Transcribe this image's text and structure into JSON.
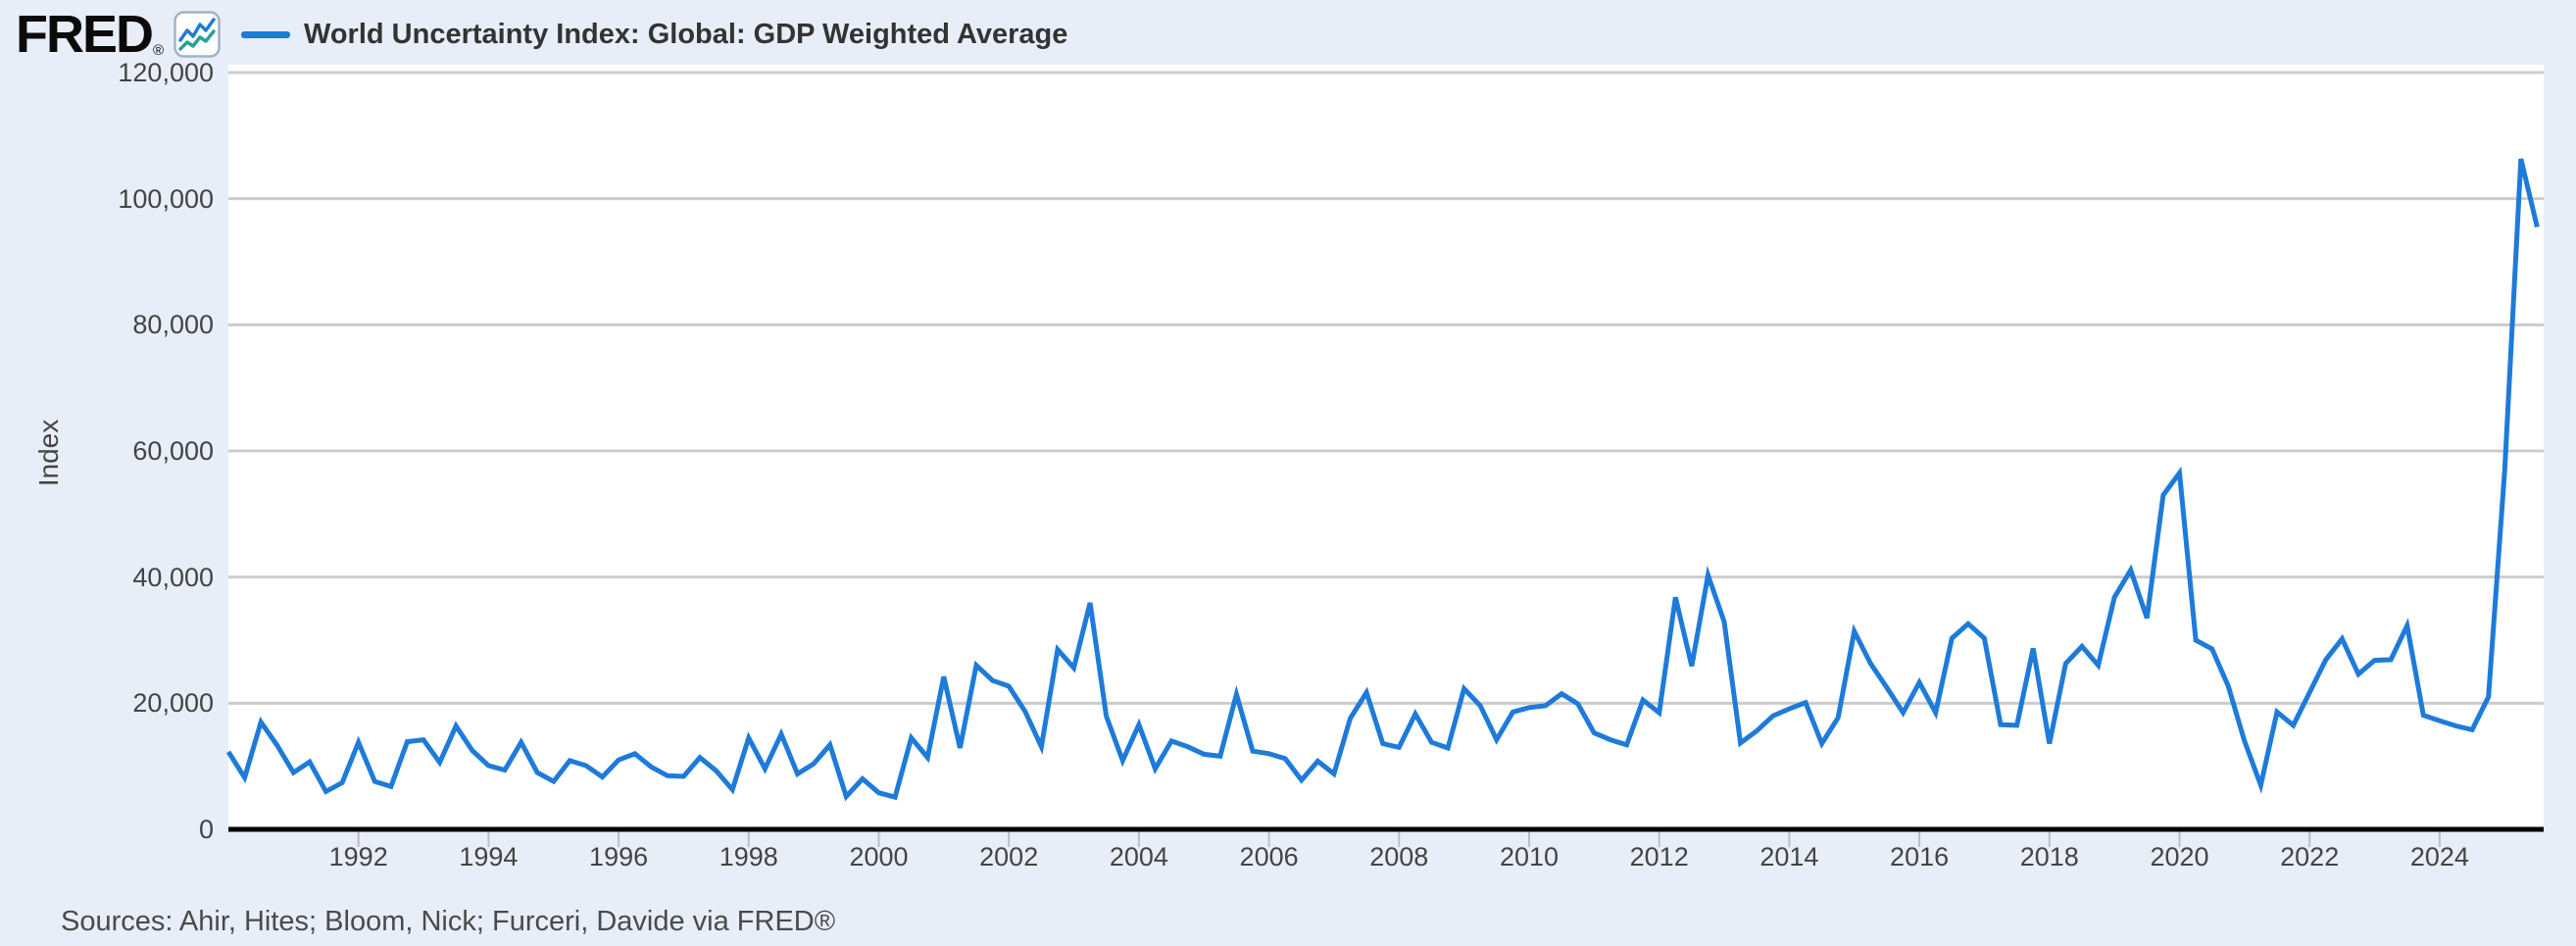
{
  "header": {
    "logo": {
      "text": "FRED",
      "registered": "®"
    },
    "legend": {
      "label": "World Uncertainty Index: Global: GDP Weighted Average",
      "line_color": "#1e7bd9"
    }
  },
  "footer": {
    "sources": "Sources: Ahir, Hites; Bloom, Nick; Furceri, Davide via FRED®"
  },
  "colors": {
    "background": "#e8eef8",
    "plot_background": "#ffffff",
    "gridline": "#cccccc",
    "axis_line": "#000000",
    "tick_mark": "#b9bec7",
    "tick_label": "#444444",
    "series_line": "#1e7bd9",
    "logo_icon_line_blue": "#1e7bd9",
    "logo_icon_line_teal": "#2aa198"
  },
  "chart_data": {
    "type": "line",
    "title": "World Uncertainty Index: Global: GDP Weighted Average",
    "xlabel": "",
    "ylabel": "Index",
    "grid": "horizontal",
    "legend_position": "top-left",
    "ylim": [
      0,
      120000
    ],
    "yticks": [
      0,
      20000,
      40000,
      60000,
      80000,
      100000,
      120000
    ],
    "ytick_labels": [
      "0",
      "20,000",
      "40,000",
      "60,000",
      "80,000",
      "100,000",
      "120,000"
    ],
    "xticks": [
      1992,
      1994,
      1996,
      1998,
      2000,
      2002,
      2004,
      2006,
      2008,
      2010,
      2012,
      2014,
      2016,
      2018,
      2020,
      2022,
      2024
    ],
    "x_start_year": 1990,
    "x_step_years": 0.25,
    "frequency": "quarterly",
    "series": [
      {
        "name": "World Uncertainty Index: Global: GDP Weighted Average",
        "color": "#1e7bd9",
        "values": [
          12300,
          8200,
          17000,
          13300,
          9000,
          10700,
          6000,
          7400,
          13800,
          7600,
          6800,
          13900,
          14200,
          10600,
          16400,
          12500,
          10100,
          9400,
          13800,
          9000,
          7600,
          10900,
          10100,
          8300,
          11000,
          12000,
          9900,
          8500,
          8400,
          11400,
          9300,
          6300,
          14500,
          9600,
          15100,
          8800,
          10400,
          13400,
          5200,
          8000,
          5800,
          5100,
          14500,
          11400,
          24200,
          12900,
          26000,
          23600,
          22700,
          18700,
          13100,
          28500,
          25600,
          35900,
          17900,
          10900,
          16600,
          9600,
          14000,
          13100,
          11900,
          11600,
          21400,
          12400,
          12000,
          11200,
          7800,
          10800,
          8800,
          17600,
          21700,
          13600,
          13000,
          18300,
          13800,
          12900,
          22300,
          19600,
          14200,
          18600,
          19300,
          19600,
          21500,
          19900,
          15300,
          14200,
          13400,
          20500,
          18500,
          36800,
          25900,
          40300,
          32900,
          13700,
          15600,
          18000,
          19100,
          20100,
          13600,
          17700,
          31400,
          26300,
          22500,
          18500,
          23300,
          18500,
          30300,
          32600,
          30300,
          16600,
          16500,
          28700,
          13600,
          26300,
          29000,
          26000,
          36800,
          41100,
          33500,
          53000,
          56500,
          30000,
          28600,
          22700,
          14000,
          7000,
          18600,
          16500,
          21700,
          26900,
          30200,
          24600,
          26800,
          26900,
          32300,
          18100,
          17200,
          16400,
          15800,
          21000,
          57000,
          106300,
          95500
        ]
      }
    ]
  }
}
